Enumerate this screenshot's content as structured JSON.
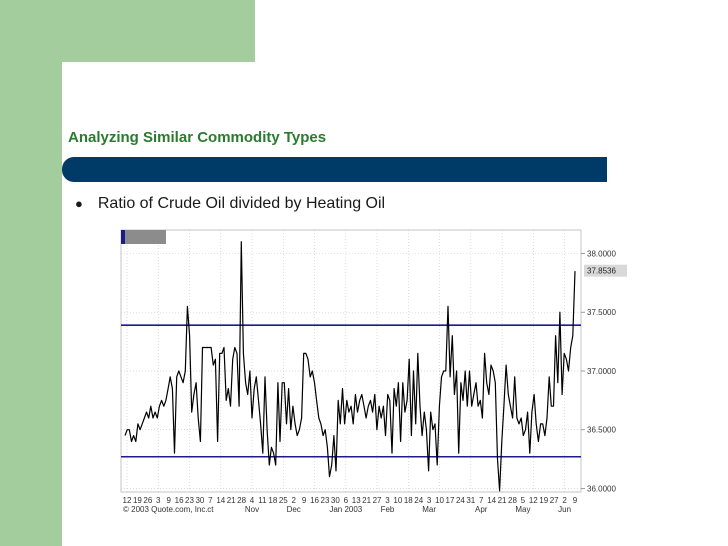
{
  "slide": {
    "title": "Analyzing Similar Commodity Types",
    "bullet_symbol": "●",
    "bullet_text": "Ratio of Crude Oil divided by Heating Oil"
  },
  "colors": {
    "green_accent": "#a3cd9d",
    "title_text": "#2b7b2e",
    "title_bar": "#003a66",
    "channel_line": "#1b1b8c",
    "price_line": "#000000",
    "last_price_box": "#d9d9d9"
  },
  "chart_data": {
    "type": "line",
    "title": "",
    "xlabel": "",
    "ylabel": "",
    "ylim": [
      35.97,
      38.2
    ],
    "yticks": [
      36.0,
      36.5,
      37.0,
      37.5,
      38.0
    ],
    "ytick_labels": [
      "36.0000",
      "36.5000",
      "37.0000",
      "37.5000",
      "38.0000"
    ],
    "last_value_label": "37.8536",
    "last_value": 37.8536,
    "channel_lines": [
      37.39,
      36.27
    ],
    "grid": true,
    "x_day_labels": [
      "12",
      "19",
      "26",
      "3",
      "9",
      "16",
      "23",
      "30",
      "7",
      "14",
      "21",
      "28",
      "4",
      "11",
      "18",
      "25",
      "2",
      "9",
      "16",
      "23",
      "30",
      "6",
      "13",
      "21",
      "27",
      "3",
      "10",
      "18",
      "24",
      "3",
      "10",
      "17",
      "24",
      "31",
      "7",
      "14",
      "21",
      "28",
      "5",
      "12",
      "19",
      "27",
      "2",
      "9"
    ],
    "x_month_labels": [
      {
        "label": "ct",
        "index": 8
      },
      {
        "label": "Nov",
        "index": 12
      },
      {
        "label": "Dec",
        "index": 16
      },
      {
        "label": "Jan 2003",
        "index": 21
      },
      {
        "label": "Feb",
        "index": 25
      },
      {
        "label": "Mar",
        "index": 29
      },
      {
        "label": "Apr",
        "index": 34
      },
      {
        "label": "May",
        "index": 38
      },
      {
        "label": "Jun",
        "index": 42
      }
    ],
    "copyright": "© 2003 Quote.com, Inc.",
    "legend_text": "",
    "series": [
      {
        "values": [
          36.45,
          36.5,
          36.5,
          36.4,
          36.45,
          36.4,
          36.55,
          36.5,
          36.55,
          36.6,
          36.65,
          36.6,
          36.7,
          36.6,
          36.65,
          36.6,
          36.7,
          36.75,
          36.7,
          36.75,
          36.85,
          36.95,
          36.85,
          36.3,
          36.95,
          37.0,
          36.95,
          36.9,
          37.0,
          37.55,
          37.3,
          36.65,
          36.8,
          36.9,
          36.6,
          36.4,
          37.2,
          37.2,
          37.2,
          37.2,
          37.2,
          37.05,
          37.1,
          36.4,
          37.15,
          37.15,
          37.2,
          36.75,
          36.85,
          36.7,
          37.1,
          37.2,
          37.15,
          36.7,
          38.1,
          37.15,
          36.9,
          36.8,
          37.0,
          36.6,
          36.85,
          36.95,
          36.75,
          36.55,
          36.3,
          36.95,
          36.5,
          36.2,
          36.35,
          36.3,
          36.2,
          36.9,
          36.4,
          36.9,
          36.9,
          36.55,
          36.85,
          36.5,
          36.7,
          36.55,
          36.45,
          36.5,
          36.6,
          37.15,
          37.15,
          37.1,
          36.95,
          37.0,
          36.9,
          36.75,
          36.6,
          36.55,
          36.45,
          36.5,
          36.35,
          36.1,
          36.2,
          36.45,
          36.15,
          36.75,
          36.55,
          36.85,
          36.55,
          36.75,
          36.65,
          36.7,
          36.55,
          36.8,
          36.65,
          36.75,
          36.8,
          36.7,
          36.6,
          36.7,
          36.75,
          36.65,
          36.8,
          36.5,
          36.7,
          36.6,
          36.7,
          36.45,
          36.8,
          36.75,
          36.3,
          36.85,
          36.7,
          36.9,
          36.4,
          36.9,
          36.65,
          36.75,
          37.1,
          36.45,
          37.0,
          36.55,
          37.15,
          36.7,
          36.45,
          36.65,
          36.5,
          36.15,
          36.65,
          36.5,
          36.55,
          36.2,
          36.7,
          36.95,
          37.0,
          37.0,
          37.55,
          36.95,
          37.3,
          36.8,
          37.0,
          36.3,
          36.9,
          36.75,
          37.0,
          36.7,
          37.0,
          36.7,
          36.8,
          36.9,
          36.7,
          36.75,
          36.6,
          37.15,
          36.9,
          36.8,
          37.05,
          37.0,
          36.9,
          36.25,
          35.98,
          36.4,
          36.7,
          37.05,
          36.8,
          36.7,
          36.6,
          36.95,
          36.6,
          36.55,
          36.6,
          36.45,
          36.5,
          36.65,
          36.3,
          36.65,
          36.8,
          36.55,
          36.4,
          36.55,
          36.55,
          36.45,
          36.6,
          36.95,
          36.7,
          36.7,
          37.3,
          36.9,
          37.5,
          36.8,
          37.15,
          37.1,
          37.0,
          37.2,
          37.3,
          37.85
        ]
      }
    ]
  }
}
